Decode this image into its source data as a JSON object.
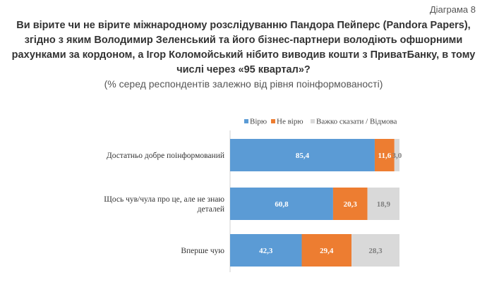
{
  "header": {
    "diagram_label": "Діаграма 8",
    "title_lines": [
      "Ви вірите чи не вірите міжнародному розслідуванню Пандора Пейперс (Pandora Papers),",
      "згідно з яким Володимир Зеленський та його бізнес-партнери володіють  офшорними",
      "рахунками за кордоном, а Ігор Коломойський нібито виводив кошти з ПриватБанку, в тому",
      "числі через «95 квартал»?"
    ],
    "subtitle": "(% серед респондентів залежно від рівня поінформованості)"
  },
  "chart_data": {
    "type": "bar",
    "orientation": "horizontal",
    "stacked": true,
    "categories": [
      [
        "Достатньо добре поінформований"
      ],
      [
        "Щось чув/чула про це, але не знаю",
        "деталей"
      ],
      [
        "Вперше чую"
      ]
    ],
    "series": [
      {
        "name": "Вірю",
        "color": "#5b9bd5",
        "values": [
          85.4,
          60.8,
          42.3
        ],
        "labels": [
          "85,4",
          "60,8",
          "42,3"
        ]
      },
      {
        "name": "Не вірю",
        "color": "#ed7d31",
        "values": [
          11.6,
          20.3,
          29.4
        ],
        "labels": [
          "11,6",
          "20,3",
          "29,4"
        ]
      },
      {
        "name": "Важко сказати / Відмова",
        "color": "#d9d9d9",
        "values": [
          3.0,
          18.9,
          28.3
        ],
        "labels": [
          "3,0",
          "18,9",
          "28,3"
        ]
      }
    ],
    "xlim": [
      0,
      100
    ],
    "legend_position": "top",
    "grid": false
  }
}
